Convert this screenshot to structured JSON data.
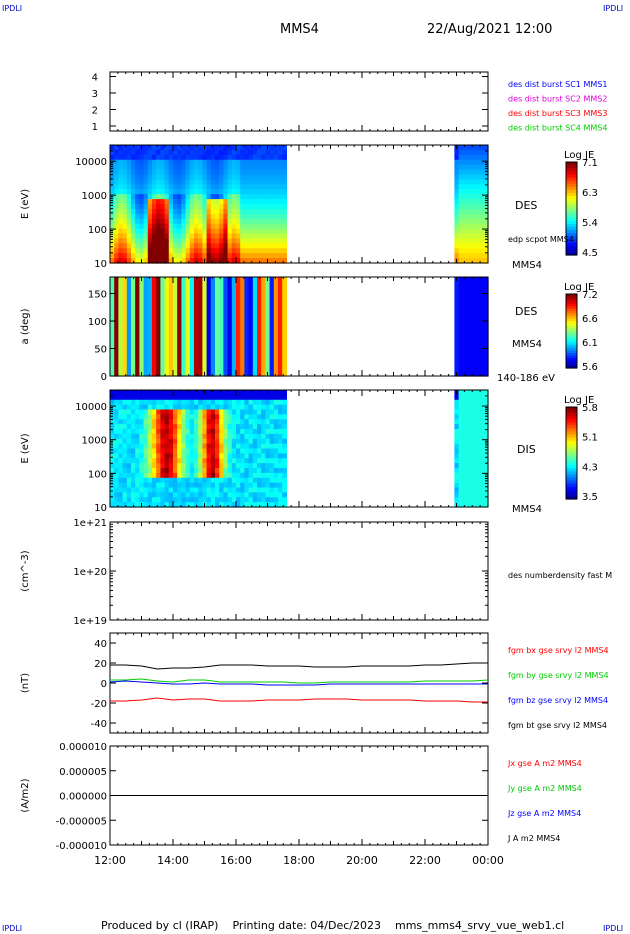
{
  "header": {
    "corner_tl": "IPDLI",
    "corner_tr": "IPDLI",
    "corner_bl": "IPDLI",
    "corner_br": "IPDLI",
    "spacecraft": "MMS4",
    "datetime": "22/Aug/2021 12:00"
  },
  "footer": {
    "producer": "Produced by cl (IRAP)",
    "printing_date": "Printing date: 04/Dec/2023",
    "filename": "mms_mms4_srvy_vue_web1.cl"
  },
  "colors": {
    "blue": "#0000ff",
    "magenta": "#e000e0",
    "red": "#ff0000",
    "green": "#00cc00",
    "black": "#000000"
  },
  "chart_data": [
    {
      "id": "burst",
      "type": "table",
      "y_ticks": [
        "1",
        "2",
        "3",
        "4"
      ],
      "legend": [
        {
          "label": "des dist burst SC1 MMS1",
          "color": "#0000ff"
        },
        {
          "label": "des dist burst SC2 MMS2",
          "color": "#e000e0"
        },
        {
          "label": "des dist burst SC3 MMS3",
          "color": "#ff0000"
        },
        {
          "label": "des dist burst SC4 MMS4",
          "color": "#00cc00"
        }
      ]
    },
    {
      "id": "des_energy",
      "type": "heatmap",
      "ylabel": "E (eV)",
      "y_scale": "log",
      "y_ticks": [
        "10",
        "100",
        "1000",
        "10000"
      ],
      "ylim": [
        10,
        30000
      ],
      "data_gap": [
        "17:36",
        "23:00"
      ],
      "right_labels": [
        "DES",
        "edp scpot MMS4",
        "MMS4"
      ],
      "colorbar": {
        "title": "Log JE",
        "ticks": [
          "7.1",
          "6.3",
          "5.4",
          "4.5"
        ]
      }
    },
    {
      "id": "des_pitch",
      "type": "heatmap",
      "ylabel": "a (deg)",
      "y_ticks": [
        "0",
        "50",
        "100",
        "150"
      ],
      "ylim": [
        0,
        180
      ],
      "data_gap": [
        "17:36",
        "23:00"
      ],
      "right_labels": [
        "DES",
        "MMS4",
        "140-186 eV"
      ],
      "colorbar": {
        "title": "Log JE",
        "ticks": [
          "7.2",
          "6.6",
          "6.1",
          "5.6"
        ]
      }
    },
    {
      "id": "dis_energy",
      "type": "heatmap",
      "ylabel": "E (eV)",
      "y_scale": "log",
      "y_ticks": [
        "10",
        "100",
        "1000",
        "10000"
      ],
      "ylim": [
        10,
        30000
      ],
      "data_gap": [
        "17:36",
        "23:00"
      ],
      "right_labels": [
        "DIS",
        "MMS4"
      ],
      "colorbar": {
        "title": "Log JE",
        "ticks": [
          "5.8",
          "5.1",
          "4.3",
          "3.5"
        ]
      }
    },
    {
      "id": "density",
      "type": "line",
      "ylabel": "(cm^-3)",
      "y_scale": "log",
      "y_ticks": [
        "1e+19",
        "1e+20",
        "1e+21"
      ],
      "ylim": [
        1e+19,
        1e+21
      ],
      "right_labels": [
        "des numberdensity fast M"
      ]
    },
    {
      "id": "fgm",
      "type": "line",
      "ylabel": "(nT)",
      "y_ticks": [
        "-40",
        "-20",
        "0",
        "20",
        "40"
      ],
      "ylim": [
        -50,
        50
      ],
      "x": [
        "12:00",
        "12:30",
        "13:00",
        "13:30",
        "14:00",
        "14:30",
        "15:00",
        "15:30",
        "16:00",
        "16:30",
        "17:00",
        "17:30",
        "18:00",
        "18:30",
        "19:00",
        "19:30",
        "20:00",
        "20:30",
        "21:00",
        "21:30",
        "22:00",
        "22:30",
        "23:00",
        "23:30",
        "00:00"
      ],
      "series": [
        {
          "name": "fgm bx gse srvy l2 MMS4",
          "color": "#ff0000",
          "values": [
            -18,
            -18,
            -17,
            -15,
            -17,
            -16,
            -16,
            -18,
            -18,
            -18,
            -17,
            -17,
            -17,
            -16,
            -16,
            -16,
            -17,
            -17,
            -17,
            -17,
            -18,
            -18,
            -18,
            -19,
            -19
          ]
        },
        {
          "name": "fgm by gse srvy l2 MMS4",
          "color": "#00cc00",
          "values": [
            3,
            3,
            4,
            2,
            1,
            3,
            3,
            1,
            1,
            1,
            1,
            1,
            0,
            0,
            1,
            1,
            1,
            1,
            1,
            1,
            2,
            2,
            2,
            2,
            3
          ]
        },
        {
          "name": "fgm bz gse srvy l2 MMS4",
          "color": "#0000ff",
          "values": [
            1,
            2,
            1,
            0,
            -1,
            -1,
            0,
            -1,
            -1,
            -1,
            -2,
            -2,
            -2,
            -2,
            -1,
            -1,
            -1,
            -1,
            -1,
            -1,
            -1,
            -1,
            -1,
            -1,
            -1
          ]
        },
        {
          "name": "fgm bt gse srvy l2 MMS4",
          "color": "#000000",
          "values": [
            18,
            18,
            17,
            14,
            15,
            15,
            16,
            18,
            18,
            18,
            17,
            17,
            17,
            16,
            16,
            16,
            17,
            17,
            17,
            17,
            18,
            18,
            19,
            20,
            20
          ]
        }
      ]
    },
    {
      "id": "current",
      "type": "line",
      "ylabel": "(A/m2)",
      "y_ticks": [
        "-0.000010",
        "-0.000005",
        "0.000000",
        "0.000005",
        "0.000010"
      ],
      "ylim": [
        -1e-05,
        1e-05
      ],
      "x": [
        "12:00",
        "13:00",
        "14:00",
        "15:00",
        "16:00",
        "17:00",
        "18:00",
        "19:00",
        "20:00",
        "21:00",
        "22:00",
        "23:00",
        "00:00"
      ],
      "series": [
        {
          "name": "Jx gse A m2 MMS4",
          "color": "#ff0000",
          "values": [
            0,
            0,
            0,
            0,
            0,
            0,
            0,
            0,
            0,
            0,
            0,
            0,
            0
          ]
        },
        {
          "name": "Jy gse A m2 MMS4",
          "color": "#00cc00",
          "values": [
            0,
            0,
            0,
            0,
            0,
            0,
            0,
            0,
            0,
            0,
            0,
            0,
            0
          ]
        },
        {
          "name": "Jz gse A m2 MMS4",
          "color": "#0000ff",
          "values": [
            0,
            0,
            0,
            0,
            0,
            0,
            0,
            0,
            0,
            0,
            0,
            0,
            0
          ]
        },
        {
          "name": "J A m2 MMS4",
          "color": "#000000",
          "values": [
            0,
            0,
            0,
            0,
            0,
            0,
            0,
            0,
            0,
            0,
            0,
            0,
            0
          ]
        }
      ]
    }
  ],
  "x_axis": {
    "ticks": [
      "12:00",
      "14:00",
      "16:00",
      "18:00",
      "20:00",
      "22:00",
      "00:00"
    ]
  }
}
